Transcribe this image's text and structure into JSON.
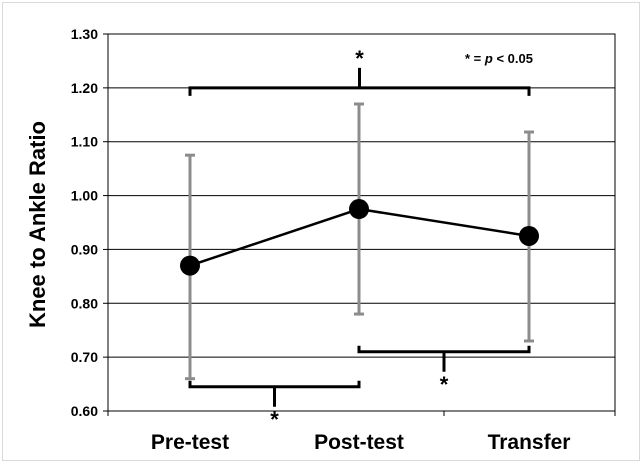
{
  "chart_data": {
    "type": "line",
    "title": "",
    "xlabel": "",
    "ylabel": "Knee to Ankle Ratio",
    "categories": [
      "Pre-test",
      "Post-test",
      "Transfer"
    ],
    "series": [
      {
        "values": [
          0.87,
          0.975,
          0.925
        ],
        "error_low": [
          0.66,
          0.78,
          0.73
        ],
        "error_high": [
          1.075,
          1.17,
          1.118
        ]
      }
    ],
    "ylim": [
      0.6,
      1.3
    ],
    "yticks": [
      "0.60",
      "0.70",
      "0.80",
      "0.90",
      "1.00",
      "1.10",
      "1.20",
      "1.30"
    ],
    "grid": true,
    "annotation": {
      "star": "*",
      "note_prefix": "* = ",
      "note_p": "p",
      "note_suffix": " < 0.05"
    },
    "significance": [
      {
        "from": 0,
        "to": 2,
        "level": 1.2,
        "position": "top"
      },
      {
        "from": 0,
        "to": 1,
        "level": 0.645,
        "position": "bottom"
      },
      {
        "from": 1,
        "to": 2,
        "level": 0.71,
        "position": "bottom"
      }
    ],
    "colors": {
      "line": "#000000",
      "marker": "#000000",
      "error_bar": "#8c8c8c",
      "grid": "#000000"
    }
  }
}
